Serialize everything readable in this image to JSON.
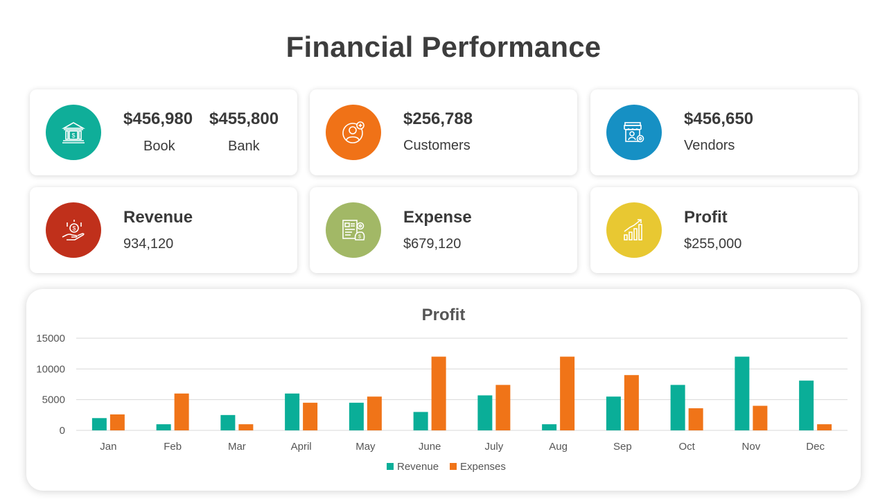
{
  "page_title": "Financial Performance",
  "colors": {
    "teal": "#0fae99",
    "orange": "#f07217",
    "blue": "#1690c4",
    "red": "#c0301b",
    "olive": "#a2b866",
    "yellow": "#e8c832",
    "revenue_bar": "#0aae98",
    "expenses_bar": "#f07418"
  },
  "cards": {
    "book_bank": {
      "icon": "bank-icon",
      "book_value": "$456,980",
      "book_label": "Book",
      "bank_value": "$455,800",
      "bank_label": "Bank"
    },
    "customers": {
      "icon": "customer-add-icon",
      "value": "$256,788",
      "label": "Customers"
    },
    "vendors": {
      "icon": "store-settings-icon",
      "value": "$456,650",
      "label": "Vendors"
    },
    "revenue": {
      "icon": "hand-money-icon",
      "title": "Revenue",
      "value": "934,120"
    },
    "expense": {
      "icon": "invoice-money-icon",
      "title": "Expense",
      "value": "$679,120"
    },
    "profit": {
      "icon": "growth-chart-icon",
      "title": "Profit",
      "value": "$255,000"
    }
  },
  "chart_data": {
    "type": "bar",
    "title": "Profit",
    "categories": [
      "Jan",
      "Feb",
      "Mar",
      "April",
      "May",
      "June",
      "July",
      "Aug",
      "Sep",
      "Oct",
      "Nov",
      "Dec"
    ],
    "series": [
      {
        "name": "Revenue",
        "values": [
          2000,
          1000,
          2500,
          6000,
          4500,
          3000,
          5700,
          1000,
          5500,
          7400,
          12000,
          8100
        ]
      },
      {
        "name": "Expenses",
        "values": [
          2600,
          6000,
          1000,
          4500,
          5500,
          12000,
          7400,
          12000,
          9000,
          3600,
          4000,
          1000
        ]
      }
    ],
    "ylim": [
      0,
      15000
    ],
    "yticks": [
      "15000",
      "10000",
      "5000",
      "0"
    ],
    "grid": true,
    "legend": "bottom"
  }
}
